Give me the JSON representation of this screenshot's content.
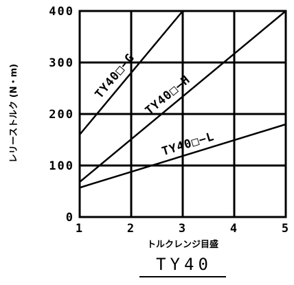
{
  "chart_data": {
    "type": "line",
    "title": "TY40",
    "xlabel": "トルクレンジ目盛",
    "ylabel": "レリーストルク (N・m)",
    "xlim": [
      1,
      5
    ],
    "ylim": [
      0,
      400
    ],
    "x_ticks": [
      1,
      2,
      3,
      4,
      5
    ],
    "y_ticks": [
      0,
      100,
      200,
      300,
      400
    ],
    "x_tick_labels": [
      "1",
      "2",
      "3",
      "4",
      "5"
    ],
    "y_tick_labels": [
      "0",
      "100",
      "200",
      "300",
      "400"
    ],
    "grid": true,
    "series": [
      {
        "name": "TY40□−G",
        "x": [
          1,
          3
        ],
        "y": [
          160,
          400
        ]
      },
      {
        "name": "TY40□−H",
        "x": [
          1,
          5
        ],
        "y": [
          68,
          400
        ]
      },
      {
        "name": "TY40□−L",
        "x": [
          1,
          5
        ],
        "y": [
          57,
          180
        ]
      }
    ]
  }
}
